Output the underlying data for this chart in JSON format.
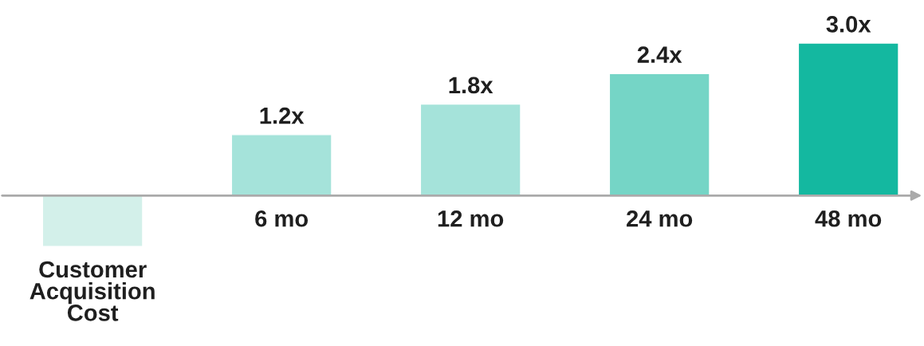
{
  "chart_data": {
    "type": "bar",
    "categories": [
      "Customer\nAcquisition\nCost",
      "6 mo",
      "12 mo",
      "24 mo",
      "48 mo"
    ],
    "values": [
      -1.0,
      1.2,
      1.8,
      2.4,
      3.0
    ],
    "colors": [
      "#d3f0ea",
      "#a5e3da",
      "#a5e3da",
      "#75d5c6",
      "#14b8a0"
    ],
    "value_labels": [
      null,
      "1.2x",
      "1.8x",
      "2.4x",
      "3.0x"
    ],
    "legend": false,
    "tick_labels": false
  }
}
